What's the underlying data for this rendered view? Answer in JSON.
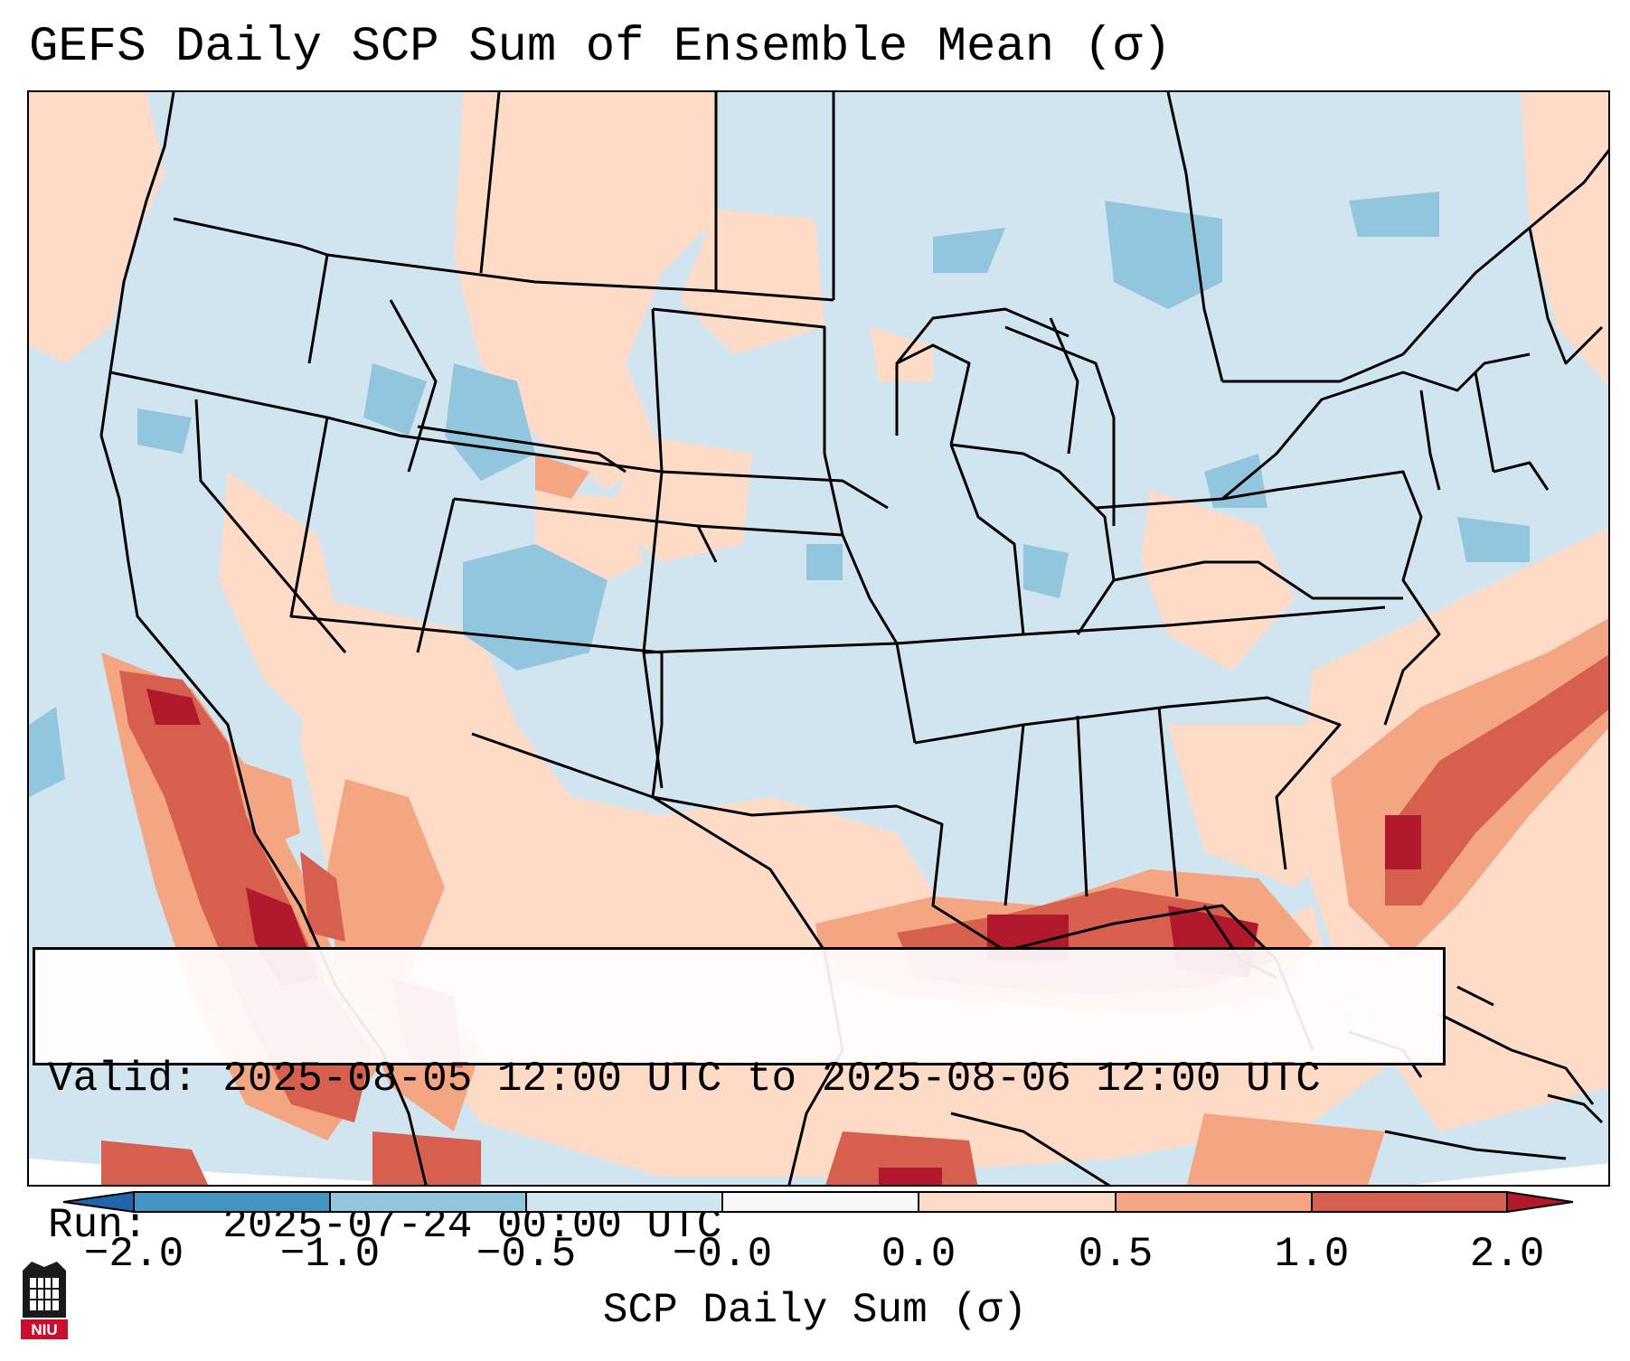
{
  "title": "GEFS Daily SCP Sum of Ensemble Mean (σ)",
  "valid_label": "Valid:",
  "valid_text": "2025-08-05 12:00 UTC to 2025-08-06 12:00 UTC",
  "run_label": "Run:",
  "run_text": "2025-07-24 00:00 UTC",
  "colorbar": {
    "label": "SCP Daily Sum (σ)",
    "ticks": [
      "−2.0",
      "−1.0",
      "−0.5",
      "−0.0",
      "0.0",
      "0.5",
      "1.0",
      "2.0"
    ],
    "colors": [
      "#4393c3",
      "#92c5de",
      "#d1e5f0",
      "#f7f7f7",
      "#fddbc7",
      "#f4a582",
      "#d6604d",
      "#b2182b"
    ],
    "extend_low_color": "#2166ac",
    "extend_high_color": "#b2182b"
  },
  "logo": {
    "text": "NIU",
    "color": "#c8102e"
  }
}
